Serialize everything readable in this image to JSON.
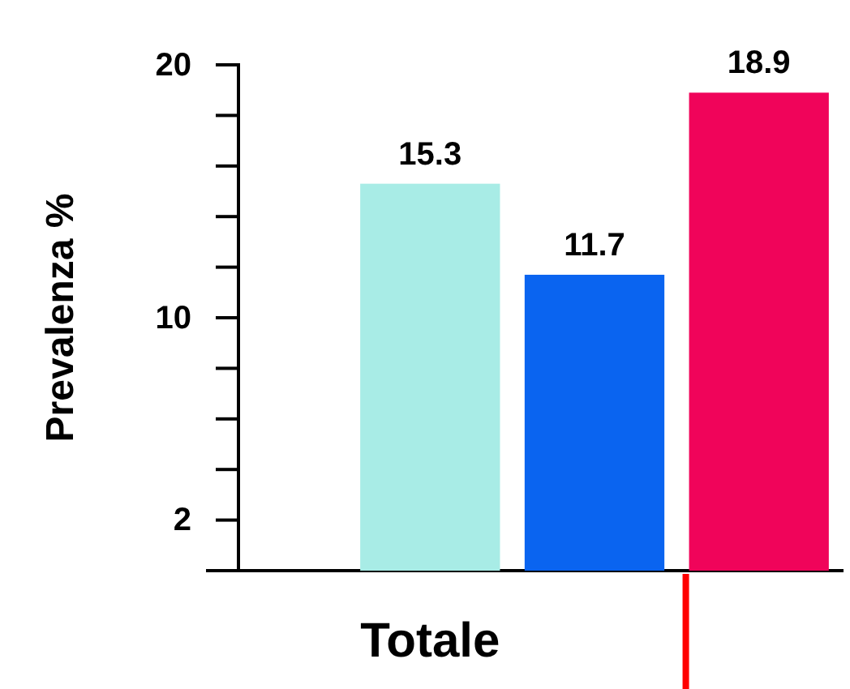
{
  "chart_data": {
    "type": "bar",
    "ylabel": "Prevalenza %",
    "categories": [
      "Totale",
      null,
      null
    ],
    "values": [
      15.3,
      11.7,
      18.9
    ],
    "colors": [
      "#a8ece6",
      "#0a64f0",
      "#f0045a"
    ],
    "ylim": [
      0,
      20
    ],
    "yticks": [
      {
        "value": 2,
        "label": "2"
      },
      {
        "value": 4,
        "label": null
      },
      {
        "value": 6,
        "label": null
      },
      {
        "value": 8,
        "label": null
      },
      {
        "value": 10,
        "label": "10"
      },
      {
        "value": 12,
        "label": null
      },
      {
        "value": 14,
        "label": null
      },
      {
        "value": 16,
        "label": null
      },
      {
        "value": 18,
        "label": null
      },
      {
        "value": 20,
        "label": "20"
      }
    ],
    "data_labels": true,
    "grid": false
  }
}
